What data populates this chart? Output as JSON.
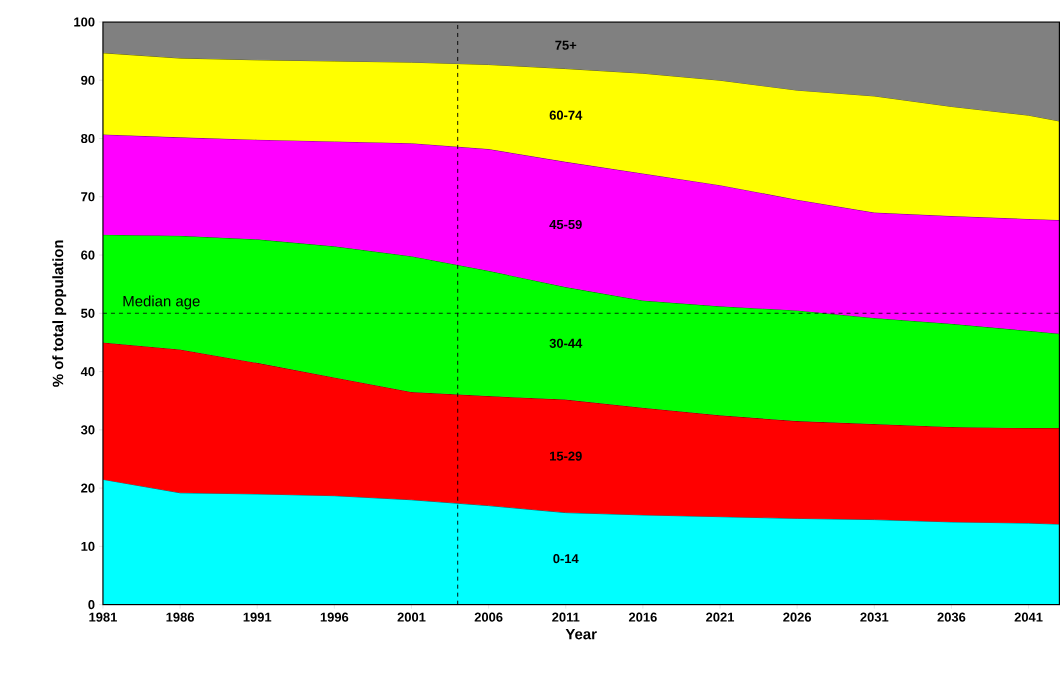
{
  "chart_data": {
    "type": "area",
    "stacked": true,
    "xlabel": "Year",
    "ylabel": "% of total population",
    "x": [
      1981,
      1986,
      1991,
      1996,
      2001,
      2006,
      2011,
      2016,
      2021,
      2026,
      2031,
      2036,
      2041,
      2043
    ],
    "series": [
      {
        "name": "0-14",
        "color": "#00ffff",
        "values": [
          21.5,
          19.2,
          19,
          18.7,
          18,
          17,
          15.8,
          15.4,
          15.1,
          14.8,
          14.6,
          14.2,
          14,
          13.8
        ]
      },
      {
        "name": "15-29",
        "color": "#ff0000",
        "values": [
          23.5,
          24.6,
          22.5,
          20.3,
          18.5,
          18.8,
          19.4,
          18.4,
          17.4,
          16.7,
          16.4,
          16.3,
          16.3,
          16.5
        ]
      },
      {
        "name": "30-44",
        "color": "#00ff00",
        "values": [
          18.5,
          19.5,
          21.2,
          22.5,
          23.3,
          21.5,
          19.3,
          18.4,
          18.7,
          19,
          18.2,
          17.7,
          16.7,
          16.2
        ]
      },
      {
        "name": "45-59",
        "color": "#ff00ff",
        "values": [
          17.2,
          16.9,
          17.1,
          18,
          19.4,
          20.9,
          21.5,
          21.8,
          20.8,
          19,
          18.1,
          18.5,
          19.2,
          19.5
        ]
      },
      {
        "name": "60-74",
        "color": "#ffff00",
        "values": [
          14,
          13.6,
          13.7,
          13.8,
          13.9,
          14.5,
          16,
          17.2,
          18,
          18.8,
          20,
          18.8,
          17.8,
          17
        ]
      },
      {
        "name": "75+",
        "color": "#808080",
        "values": [
          5.3,
          6.2,
          6.5,
          6.7,
          6.9,
          7.3,
          8,
          8.8,
          10,
          11.7,
          12.7,
          14.5,
          16,
          17
        ]
      }
    ],
    "xlim": [
      1981,
      2043
    ],
    "ylim": [
      0,
      100
    ],
    "xticks": [
      1981,
      1986,
      1991,
      1996,
      2001,
      2006,
      2011,
      2016,
      2021,
      2026,
      2031,
      2036,
      2041
    ],
    "yticks": [
      0,
      10,
      20,
      30,
      40,
      50,
      60,
      70,
      80,
      90,
      100
    ],
    "ref_lines": [
      {
        "axis": "y",
        "value": 50,
        "label": "Median age",
        "line_style": "dashed"
      },
      {
        "axis": "x",
        "value": 2004,
        "label": null,
        "line_style": "dashed"
      }
    ]
  }
}
